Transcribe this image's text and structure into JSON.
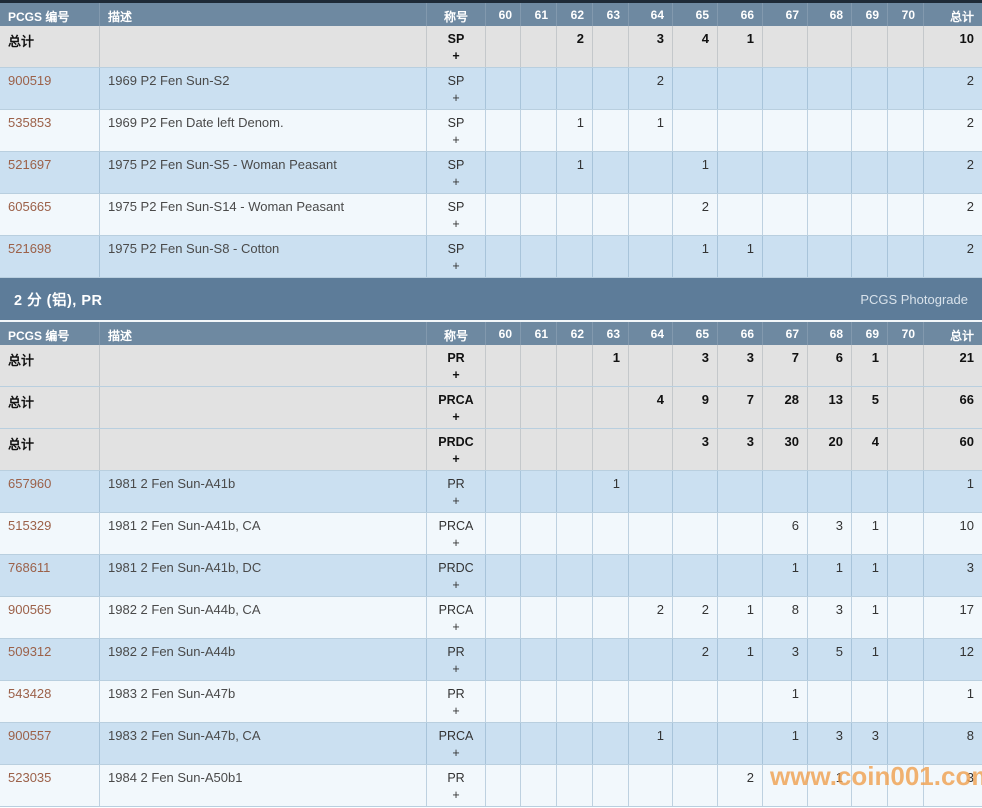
{
  "watermark": "www.coin001.com",
  "section_header": {
    "title": "2 分 (铝), PR",
    "right_label": "PCGS Photograde"
  },
  "columns": {
    "number": "PCGS 编号",
    "description": "描述",
    "designation": "称号",
    "total": "总计"
  },
  "grade_columns": [
    "60",
    "61",
    "62",
    "63",
    "64",
    "65",
    "66",
    "67",
    "68",
    "69",
    "70"
  ],
  "plus_sign": "+",
  "total_label": "总计",
  "colors": {
    "top_bar": "#1e2a37",
    "table_header_bg": "#6e89a1",
    "section_header_bg": "#5d7c99",
    "total_row_bg": "#e2e2e2",
    "row_alt_blue": "#cbe0f1",
    "row_alt_white": "#f2f8fc",
    "pcgs_number_link": "#9c6149",
    "watermark_orange": "#f0a04e"
  },
  "tables": [
    {
      "name": "sp-population-table",
      "rows": [
        {
          "number": "总计",
          "is_total": true,
          "description": "",
          "designation": "SP",
          "grades": [
            "",
            "",
            "2",
            "",
            "3",
            "4",
            "1",
            "",
            "",
            "",
            ""
          ],
          "total": "10"
        },
        {
          "number": "900519",
          "is_total": false,
          "description": "1969 P2 Fen Sun-S2",
          "designation": "SP",
          "grades": [
            "",
            "",
            "",
            "",
            "2",
            "",
            "",
            "",
            "",
            "",
            ""
          ],
          "total": "2"
        },
        {
          "number": "535853",
          "is_total": false,
          "description": "1969 P2 Fen Date left Denom.",
          "designation": "SP",
          "grades": [
            "",
            "",
            "1",
            "",
            "1",
            "",
            "",
            "",
            "",
            "",
            ""
          ],
          "total": "2"
        },
        {
          "number": "521697",
          "is_total": false,
          "description": "1975 P2 Fen Sun-S5 - Woman Peasant",
          "designation": "SP",
          "grades": [
            "",
            "",
            "1",
            "",
            "",
            "1",
            "",
            "",
            "",
            "",
            ""
          ],
          "total": "2"
        },
        {
          "number": "605665",
          "is_total": false,
          "description": "1975 P2 Fen Sun-S14 - Woman Peasant",
          "designation": "SP",
          "grades": [
            "",
            "",
            "",
            "",
            "",
            "2",
            "",
            "",
            "",
            "",
            ""
          ],
          "total": "2"
        },
        {
          "number": "521698",
          "is_total": false,
          "description": "1975 P2 Fen Sun-S8 - Cotton",
          "designation": "SP",
          "grades": [
            "",
            "",
            "",
            "",
            "",
            "1",
            "1",
            "",
            "",
            "",
            ""
          ],
          "total": "2"
        }
      ]
    },
    {
      "name": "pr-population-table",
      "rows": [
        {
          "number": "总计",
          "is_total": true,
          "description": "",
          "designation": "PR",
          "grades": [
            "",
            "",
            "",
            "1",
            "",
            "3",
            "3",
            "7",
            "6",
            "1",
            ""
          ],
          "total": "21"
        },
        {
          "number": "总计",
          "is_total": true,
          "description": "",
          "designation": "PRCA",
          "grades": [
            "",
            "",
            "",
            "",
            "4",
            "9",
            "7",
            "28",
            "13",
            "5",
            ""
          ],
          "total": "66"
        },
        {
          "number": "总计",
          "is_total": true,
          "description": "",
          "designation": "PRDC",
          "grades": [
            "",
            "",
            "",
            "",
            "",
            "3",
            "3",
            "30",
            "20",
            "4",
            ""
          ],
          "total": "60"
        },
        {
          "number": "657960",
          "is_total": false,
          "description": "1981 2 Fen Sun-A41b",
          "designation": "PR",
          "grades": [
            "",
            "",
            "",
            "1",
            "",
            "",
            "",
            "",
            "",
            "",
            ""
          ],
          "total": "1"
        },
        {
          "number": "515329",
          "is_total": false,
          "description": "1981 2 Fen Sun-A41b, CA",
          "designation": "PRCA",
          "grades": [
            "",
            "",
            "",
            "",
            "",
            "",
            "",
            "6",
            "3",
            "1",
            ""
          ],
          "total": "10"
        },
        {
          "number": "768611",
          "is_total": false,
          "description": "1981 2 Fen Sun-A41b, DC",
          "designation": "PRDC",
          "grades": [
            "",
            "",
            "",
            "",
            "",
            "",
            "",
            "1",
            "1",
            "1",
            ""
          ],
          "total": "3"
        },
        {
          "number": "900565",
          "is_total": false,
          "description": "1982 2 Fen Sun-A44b, CA",
          "designation": "PRCA",
          "grades": [
            "",
            "",
            "",
            "",
            "2",
            "2",
            "1",
            "8",
            "3",
            "1",
            ""
          ],
          "total": "17"
        },
        {
          "number": "509312",
          "is_total": false,
          "description": "1982 2 Fen Sun-A44b",
          "designation": "PR",
          "grades": [
            "",
            "",
            "",
            "",
            "",
            "2",
            "1",
            "3",
            "5",
            "1",
            ""
          ],
          "total": "12"
        },
        {
          "number": "543428",
          "is_total": false,
          "description": "1983 2 Fen Sun-A47b",
          "designation": "PR",
          "grades": [
            "",
            "",
            "",
            "",
            "",
            "",
            "",
            "1",
            "",
            "",
            ""
          ],
          "total": "1"
        },
        {
          "number": "900557",
          "is_total": false,
          "description": "1983 2 Fen Sun-A47b, CA",
          "designation": "PRCA",
          "grades": [
            "",
            "",
            "",
            "",
            "1",
            "",
            "",
            "1",
            "3",
            "3",
            ""
          ],
          "total": "8"
        },
        {
          "number": "523035",
          "is_total": false,
          "description": "1984 2 Fen Sun-A50b1",
          "designation": "PR",
          "grades": [
            "",
            "",
            "",
            "",
            "",
            "",
            "2",
            "",
            "1",
            "",
            ""
          ],
          "total": "3"
        }
      ]
    }
  ]
}
